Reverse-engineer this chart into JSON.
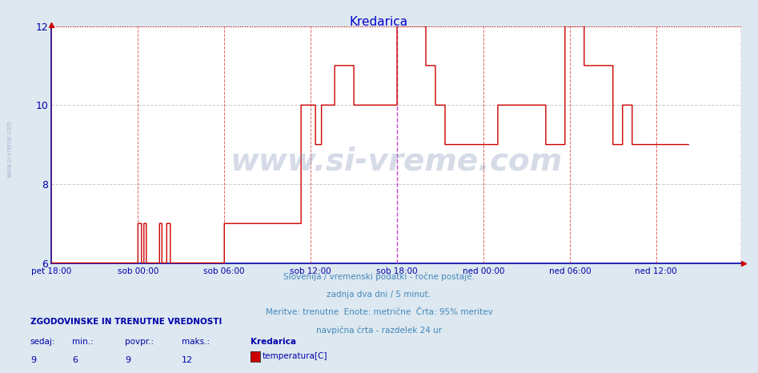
{
  "title": "Kredarica",
  "title_color": "#0000cc",
  "bg_color": "#dde8f0",
  "plot_bg_color": "#ffffff",
  "xticklabels": [
    "pet 18:00",
    "sob 00:00",
    "sob 06:00",
    "sob 12:00",
    "sob 18:00",
    "ned 00:00",
    "ned 06:00",
    "ned 12:00"
  ],
  "xtick_positions": [
    0,
    72,
    144,
    216,
    288,
    360,
    432,
    504
  ],
  "total_points": 576,
  "ylim": [
    6,
    12
  ],
  "yticks": [
    6,
    8,
    10,
    12
  ],
  "tick_color": "#0000aa",
  "line_color": "#cc0000",
  "max_line_color": "#cc0000",
  "vline_color": "#cc0000",
  "current_vline_pos": 288,
  "current_vline_color": "#cc44cc",
  "right_vline_color": "#cc44cc",
  "grid_color": "#cccccc",
  "label_color": "#4488bb",
  "footer_text1": "Slovenija / vremenski podatki - ročne postaje.",
  "footer_text2": "zadnja dva dni / 5 minut.",
  "footer_text3": "Meritve: trenutne  Enote: metrične  Črta: 95% meritev",
  "footer_text4": "navpična črta - razdelek 24 ur",
  "legend_title": "ZGODOVINSKE IN TRENUTNE VREDNOSTI",
  "legend_headers": [
    "sedaj:",
    "min.:",
    "povpr.:",
    "maks.:"
  ],
  "legend_values": [
    "9",
    "6",
    "9",
    "12"
  ],
  "legend_series": "Kredarica",
  "legend_label": "temperatura[C]",
  "legend_color": "#cc0000",
  "watermark_text": "www.si-vreme.com",
  "left_label": "www.si-vreme.com",
  "temp_data": [
    6,
    6,
    6,
    6,
    6,
    6,
    6,
    6,
    6,
    6,
    6,
    6,
    6,
    6,
    6,
    6,
    6,
    6,
    6,
    6,
    6,
    6,
    6,
    6,
    6,
    6,
    6,
    6,
    6,
    6,
    6,
    6,
    6,
    6,
    6,
    6,
    6,
    6,
    6,
    6,
    6,
    6,
    6,
    6,
    6,
    6,
    6,
    6,
    6,
    6,
    6,
    6,
    6,
    6,
    6,
    6,
    6,
    6,
    6,
    6,
    6,
    6,
    6,
    6,
    6,
    6,
    6,
    6,
    6,
    6,
    6,
    6,
    7,
    7,
    7,
    6,
    6,
    7,
    7,
    6,
    6,
    6,
    6,
    6,
    6,
    6,
    6,
    6,
    6,
    6,
    7,
    7,
    6,
    6,
    6,
    6,
    7,
    7,
    7,
    6,
    6,
    6,
    6,
    6,
    6,
    6,
    6,
    6,
    6,
    6,
    6,
    6,
    6,
    6,
    6,
    6,
    6,
    6,
    6,
    6,
    6,
    6,
    6,
    6,
    6,
    6,
    6,
    6,
    6,
    6,
    6,
    6,
    6,
    6,
    6,
    6,
    6,
    6,
    6,
    6,
    6,
    6,
    6,
    6,
    7,
    7,
    7,
    7,
    7,
    7,
    7,
    7,
    7,
    7,
    7,
    7,
    7,
    7,
    7,
    7,
    7,
    7,
    7,
    7,
    7,
    7,
    7,
    7,
    7,
    7,
    7,
    7,
    7,
    7,
    7,
    7,
    7,
    7,
    7,
    7,
    7,
    7,
    7,
    7,
    7,
    7,
    7,
    7,
    7,
    7,
    7,
    7,
    7,
    7,
    7,
    7,
    7,
    7,
    7,
    7,
    7,
    7,
    7,
    7,
    7,
    7,
    7,
    7,
    10,
    10,
    10,
    10,
    10,
    10,
    10,
    10,
    10,
    10,
    10,
    10,
    9,
    9,
    9,
    9,
    9,
    10,
    10,
    10,
    10,
    10,
    10,
    10,
    10,
    10,
    10,
    10,
    11,
    11,
    11,
    11,
    11,
    11,
    11,
    11,
    11,
    11,
    11,
    11,
    11,
    11,
    11,
    11,
    10,
    10,
    10,
    10,
    10,
    10,
    10,
    10,
    10,
    10,
    10,
    10,
    10,
    10,
    10,
    10,
    10,
    10,
    10,
    10,
    10,
    10,
    10,
    10,
    10,
    10,
    10,
    10,
    10,
    10,
    10,
    10,
    10,
    10,
    10,
    10,
    12,
    12,
    12,
    12,
    12,
    12,
    12,
    12,
    12,
    12,
    12,
    12,
    12,
    12,
    12,
    12,
    12,
    12,
    12,
    12,
    12,
    12,
    12,
    12,
    11,
    11,
    11,
    11,
    11,
    11,
    11,
    11,
    10,
    10,
    10,
    10,
    10,
    10,
    10,
    10,
    9,
    9,
    9,
    9,
    9,
    9,
    9,
    9,
    9,
    9,
    9,
    9,
    9,
    9,
    9,
    9,
    9,
    9,
    9,
    9,
    9,
    9,
    9,
    9,
    9,
    9,
    9,
    9,
    9,
    9,
    9,
    9,
    9,
    9,
    9,
    9,
    9,
    9,
    9,
    9,
    9,
    9,
    9,
    9,
    10,
    10,
    10,
    10,
    10,
    10,
    10,
    10,
    10,
    10,
    10,
    10,
    10,
    10,
    10,
    10,
    10,
    10,
    10,
    10,
    10,
    10,
    10,
    10,
    10,
    10,
    10,
    10,
    10,
    10,
    10,
    10,
    10,
    10,
    10,
    10,
    10,
    10,
    10,
    10,
    9,
    9,
    9,
    9,
    9,
    9,
    9,
    9,
    9,
    9,
    9,
    9,
    9,
    9,
    9,
    9,
    12,
    12,
    12,
    12,
    12,
    12,
    12,
    12,
    12,
    12,
    12,
    12,
    12,
    12,
    12,
    12,
    11,
    11,
    11,
    11,
    11,
    11,
    11,
    11,
    11,
    11,
    11,
    11,
    11,
    11,
    11,
    11,
    11,
    11,
    11,
    11,
    11,
    11,
    11,
    11,
    9,
    9,
    9,
    9,
    9,
    9,
    9,
    9,
    10,
    10,
    10,
    10,
    10,
    10,
    10,
    10,
    9,
    9,
    9,
    9,
    9,
    9,
    9,
    9,
    9,
    9,
    9,
    9,
    9,
    9,
    9,
    9,
    9,
    9,
    9,
    9,
    9,
    9,
    9,
    9,
    9,
    9,
    9,
    9,
    9,
    9,
    9,
    9,
    9,
    9,
    9,
    9,
    9,
    9,
    9,
    9,
    9,
    9,
    9,
    9,
    9,
    9,
    9,
    9
  ]
}
